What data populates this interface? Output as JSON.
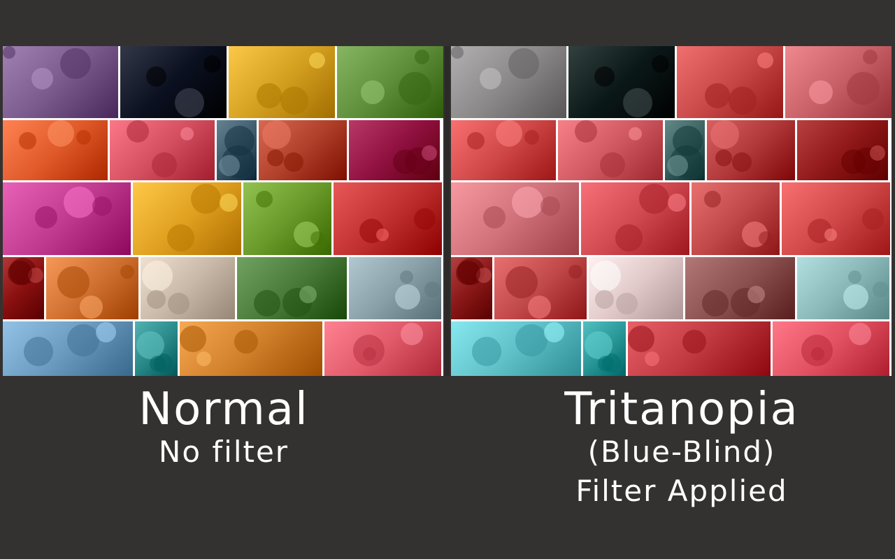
{
  "captions": {
    "normal": {
      "title": "Normal",
      "subtitle": "No filter"
    },
    "tritanopia": {
      "title": "Tritanopia",
      "subtitle": "(Blue-Blind)",
      "subtitle2": "Filter Applied"
    }
  },
  "panels": [
    {
      "name": "normal-collage",
      "rows": [
        [
          "#7a5a8c",
          "#0b1020",
          "#d4a020",
          "#5f8e3a"
        ],
        [
          "#e05a2a",
          "#d45060",
          "#3c5a6a",
          "#b0402a",
          "#901040"
        ],
        [
          "#c03a90",
          "#e0a020",
          "#6a9a2a",
          "#c03030"
        ],
        [
          "#8a1010",
          "#d07030",
          "#c8b8a8",
          "#4a7a3a",
          "#8aa0a8"
        ],
        [
          "#6a9abe",
          "#2a8a8a",
          "#d0802a",
          "#e05a6a"
        ]
      ]
    },
    {
      "name": "tritanopia-collage",
      "rows": [
        [
          "#8a8888",
          "#0b1818",
          "#c84848",
          "#c86068"
        ],
        [
          "#d04848",
          "#d05860",
          "#3a6060",
          "#b03838",
          "#901818"
        ],
        [
          "#d07078",
          "#d04850",
          "#c04848",
          "#d04848"
        ],
        [
          "#8a1818",
          "#c04848",
          "#e0c8c8",
          "#8a5050",
          "#8ab8b8"
        ],
        [
          "#60c0c8",
          "#2a9898",
          "#c03840",
          "#e05060"
        ]
      ]
    }
  ]
}
